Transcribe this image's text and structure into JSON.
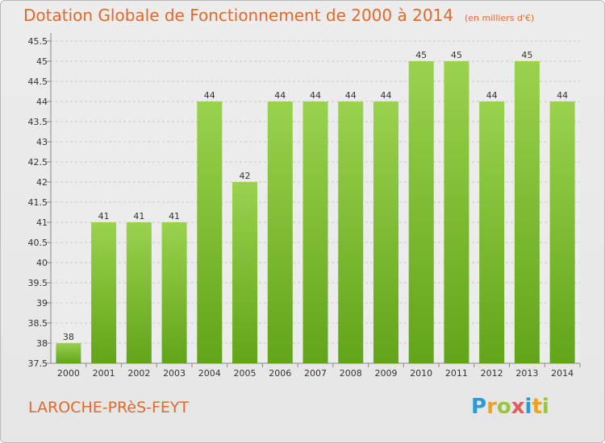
{
  "header": {
    "title": "Dotation Globale de Fonctionnement de 2000 à 2014",
    "unit": "(en milliers d'€)"
  },
  "footer": {
    "commune": "LAROCHE-PRèS-FEYT",
    "logo": [
      "P",
      "r",
      "o",
      "x",
      "i",
      "t",
      "i"
    ]
  },
  "colors": {
    "bar": "#7cc12f",
    "bar_top": "#9ad24d",
    "title": "#e06a2c"
  },
  "chart_data": {
    "type": "bar",
    "title": "Dotation Globale de Fonctionnement de 2000 à 2014",
    "subtitle": "(en milliers d'€)",
    "categories": [
      "2000",
      "2001",
      "2002",
      "2003",
      "2004",
      "2005",
      "2006",
      "2007",
      "2008",
      "2009",
      "2010",
      "2011",
      "2012",
      "2013",
      "2014"
    ],
    "values": [
      38,
      41,
      41,
      41,
      44,
      42,
      44,
      44,
      44,
      44,
      45,
      45,
      44,
      45,
      44
    ],
    "ylim": [
      37.5,
      45.5
    ],
    "yticks": [
      "37.5",
      "38",
      "38.5",
      "39",
      "39.5",
      "40",
      "40.5",
      "41",
      "41.5",
      "42",
      "42.5",
      "43",
      "43.5",
      "44",
      "44.5",
      "45",
      "45.5"
    ],
    "grid": true
  }
}
